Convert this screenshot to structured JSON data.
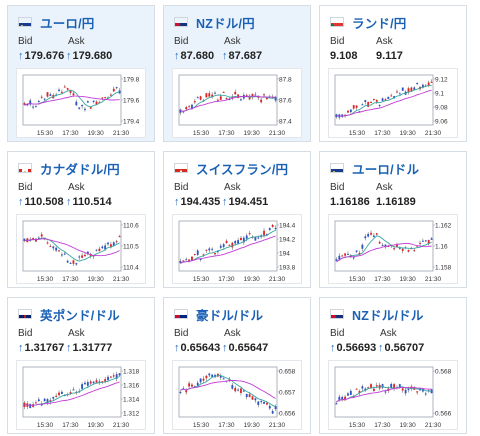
{
  "x_ticks": [
    "15:30",
    "17:30",
    "19:30",
    "21:30"
  ],
  "cards": [
    {
      "id": "eur-jpy",
      "title": "ユーロ/円",
      "flag": "eu",
      "bid_label": "Bid",
      "ask_label": "Ask",
      "bid": "179.676",
      "ask": "179.680",
      "arrow": true,
      "highlight": true,
      "y_ticks": [
        "179.8",
        "179.6",
        "179.4"
      ],
      "trend": "up-dip"
    },
    {
      "id": "nzd-jpy",
      "title": "NZドル/円",
      "flag": "nz",
      "bid_label": "Bid",
      "ask_label": "Ask",
      "bid": "87.680",
      "ask": "87.687",
      "arrow": true,
      "highlight": true,
      "y_ticks": [
        "87.8",
        "87.6",
        "87.4"
      ],
      "trend": "up-flat"
    },
    {
      "id": "zar-jpy",
      "title": "ランド/円",
      "flag": "za",
      "bid_label": "Bid",
      "ask_label": "Ask",
      "bid": "9.108",
      "ask": "9.117",
      "arrow": false,
      "highlight": false,
      "y_ticks": [
        "9.12",
        "9.1",
        "9.08",
        "9.06"
      ],
      "trend": "up"
    },
    {
      "id": "cad-jpy",
      "title": "カナダドル/円",
      "flag": "ca",
      "bid_label": "Bid",
      "ask_label": "Ask",
      "bid": "110.508",
      "ask": "110.514",
      "arrow": true,
      "highlight": false,
      "y_ticks": [
        "110.6",
        "110.5",
        "110.4"
      ],
      "trend": "dip-recover"
    },
    {
      "id": "chf-jpy",
      "title": "スイスフラン/円",
      "flag": "ch",
      "bid_label": "Bid",
      "ask_label": "Ask",
      "bid": "194.435",
      "ask": "194.451",
      "arrow": true,
      "highlight": false,
      "y_ticks": [
        "194.4",
        "194.2",
        "194",
        "193.8"
      ],
      "trend": "up"
    },
    {
      "id": "eur-usd",
      "title": "ユーロ/ドル",
      "flag": "eu",
      "bid_label": "Bid",
      "ask_label": "Ask",
      "bid": "1.16186",
      "ask": "1.16189",
      "arrow": false,
      "highlight": false,
      "y_ticks": [
        "1.162",
        "1.16",
        "1.158"
      ],
      "trend": "spike-mid"
    },
    {
      "id": "gbp-usd",
      "title": "英ポンド/ドル",
      "flag": "uk",
      "bid_label": "Bid",
      "ask_label": "Ask",
      "bid": "1.31767",
      "ask": "1.31777",
      "arrow": true,
      "highlight": false,
      "y_ticks": [
        "1.318",
        "1.316",
        "1.314",
        "1.312"
      ],
      "trend": "up"
    },
    {
      "id": "aud-usd",
      "title": "豪ドル/ドル",
      "flag": "au",
      "bid_label": "Bid",
      "ask_label": "Ask",
      "bid": "0.65643",
      "ask": "0.65647",
      "arrow": true,
      "highlight": false,
      "y_ticks": [
        "0.658",
        "0.657",
        "0.656"
      ],
      "trend": "peak-down"
    },
    {
      "id": "nzd-usd",
      "title": "NZドル/ドル",
      "flag": "nz",
      "bid_label": "Bid",
      "ask_label": "Ask",
      "bid": "0.56693",
      "ask": "0.56707",
      "arrow": true,
      "highlight": false,
      "y_ticks": [
        "0.568",
        "0.566"
      ],
      "trend": "up-flat"
    }
  ],
  "colors": {
    "title": "#1a61b5",
    "up_candle": "#e02424",
    "down_candle": "#2a55c8",
    "ma_short": "#3aa6a0",
    "ma_long": "#c13cd6",
    "arrow": "#2a6fc0"
  }
}
